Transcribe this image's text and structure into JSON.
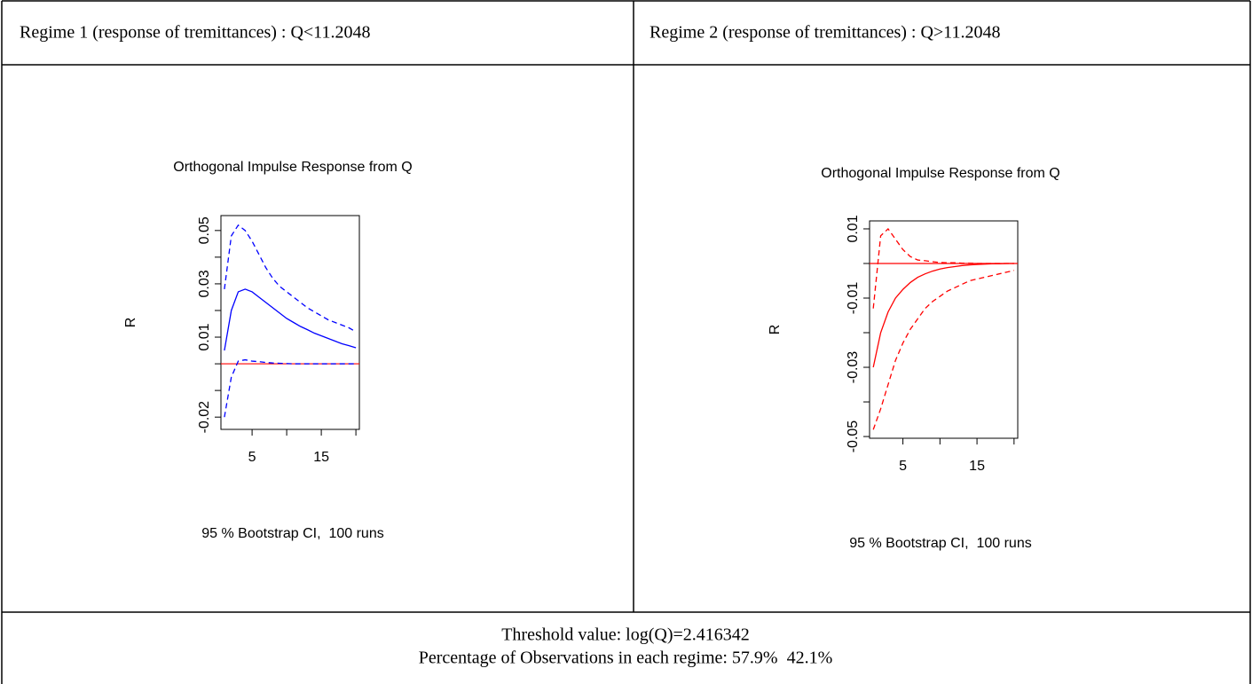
{
  "table": {
    "header": [
      "Regime 1 (response of tremittances) : Q<11.2048",
      "Regime 2 (response of tremittances) : Q>11.2048"
    ],
    "footer": [
      "Threshold value: log(Q)=2.416342",
      "Percentage of Observations in each regime: 57.9%  42.1%"
    ]
  },
  "chart_data": [
    {
      "type": "line",
      "title": "Orthogonal Impulse Response from Q",
      "ylabel": "R",
      "subtitle": "95 % Bootstrap CI,  100 runs",
      "x": [
        1,
        2,
        3,
        4,
        5,
        6,
        7,
        8,
        9,
        10,
        11,
        12,
        13,
        14,
        15,
        16,
        17,
        18,
        19,
        20
      ],
      "xlim": [
        0.5,
        20.5
      ],
      "xticks": [
        5,
        {
          "value": 10,
          "label": null
        },
        15,
        {
          "value": 20,
          "label": null
        }
      ],
      "ylim": [
        -0.0246,
        0.0556
      ],
      "yticks": [
        -0.02,
        {
          "value": -0.01,
          "label": null
        },
        {
          "value": 0,
          "label": null
        },
        0.01,
        {
          "value": 0.02,
          "label": null
        },
        0.03,
        {
          "value": 0.04,
          "label": null
        },
        0.05
      ],
      "hline": 0,
      "hline_color": "#ff0000",
      "series": [
        {
          "color": "#0000ff",
          "dashed": false,
          "values": [
            0.005,
            0.02,
            0.027,
            0.028,
            0.027,
            0.025,
            0.023,
            0.021,
            0.019,
            0.017,
            0.0155,
            0.014,
            0.0128,
            0.0115,
            0.0105,
            0.0095,
            0.0085,
            0.0075,
            0.0068,
            0.006
          ]
        },
        {
          "color": "#0000ff",
          "dashed": true,
          "values": [
            0.028,
            0.048,
            0.052,
            0.05,
            0.046,
            0.041,
            0.036,
            0.032,
            0.029,
            0.027,
            0.025,
            0.023,
            0.021,
            0.0195,
            0.018,
            0.0165,
            0.0155,
            0.0145,
            0.0135,
            0.012
          ]
        },
        {
          "color": "#0000ff",
          "dashed": true,
          "values": [
            -0.02,
            -0.005,
            0.001,
            0.0015,
            0.001,
            0.0008,
            0.0005,
            0.0003,
            0.0002,
            0.0001,
            0,
            0,
            0,
            0,
            0,
            0,
            0,
            0,
            0,
            0
          ]
        }
      ]
    },
    {
      "type": "line",
      "title": "Orthogonal Impulse Response from Q",
      "ylabel": "R",
      "subtitle": "95 % Bootstrap CI,  100 runs",
      "x": [
        1,
        2,
        3,
        4,
        5,
        6,
        7,
        8,
        9,
        10,
        11,
        12,
        13,
        14,
        15,
        16,
        17,
        18,
        19,
        20
      ],
      "xlim": [
        0.5,
        20.5
      ],
      "xticks": [
        5,
        {
          "value": 10,
          "label": null
        },
        15,
        {
          "value": 20,
          "label": null
        }
      ],
      "ylim": [
        -0.0505,
        0.0123
      ],
      "yticks": [
        -0.05,
        {
          "value": -0.04,
          "label": null
        },
        -0.03,
        {
          "value": -0.02,
          "label": null
        },
        -0.01,
        {
          "value": 0,
          "label": null
        },
        0.01
      ],
      "hline": 0,
      "hline_color": "#ff0000",
      "series": [
        {
          "color": "#ff0000",
          "dashed": false,
          "values": [
            -0.03,
            -0.02,
            -0.014,
            -0.01,
            -0.0075,
            -0.0055,
            -0.004,
            -0.003,
            -0.0022,
            -0.0016,
            -0.0012,
            -0.0009,
            -0.0006,
            -0.0004,
            -0.0003,
            -0.0002,
            -0.0001,
            -0.0001,
            0,
            0
          ]
        },
        {
          "color": "#ff0000",
          "dashed": true,
          "values": [
            -0.013,
            0.008,
            0.01,
            0.007,
            0.004,
            0.002,
            0.001,
            0.0008,
            0.0005,
            0.0003,
            0.0002,
            0.0002,
            0.0001,
            0.0001,
            0,
            0,
            0,
            0,
            0,
            0
          ]
        },
        {
          "color": "#ff0000",
          "dashed": true,
          "values": [
            -0.048,
            -0.042,
            -0.035,
            -0.028,
            -0.023,
            -0.019,
            -0.016,
            -0.013,
            -0.011,
            -0.0095,
            -0.008,
            -0.007,
            -0.006,
            -0.005,
            -0.0045,
            -0.004,
            -0.0035,
            -0.003,
            -0.0025,
            -0.002
          ]
        }
      ]
    }
  ]
}
